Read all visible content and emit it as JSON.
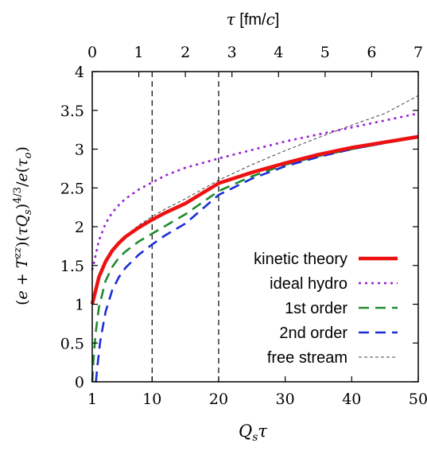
{
  "chart_data": {
    "type": "line",
    "xlabel": "Q_s τ",
    "ylabel": "(e + T^zz)(τQ_s)^4/3 / e(τ_o)",
    "top_xlabel": "τ [fm/c]",
    "xlim": [
      0,
      50
    ],
    "ylim": [
      0,
      4
    ],
    "x_ticks": [
      "1",
      "10",
      "20",
      "30",
      "40",
      "50"
    ],
    "x_tick_values": [
      1,
      10,
      20,
      30,
      40,
      50
    ],
    "y_ticks": [
      "0",
      "0.5",
      "1",
      "1.5",
      "2",
      "2.5",
      "3",
      "3.5",
      "4"
    ],
    "y_tick_values": [
      0,
      0.5,
      1,
      1.5,
      2,
      2.5,
      3,
      3.5,
      4
    ],
    "top_ticks": [
      "0",
      "1",
      "2",
      "3",
      "4",
      "5",
      "6",
      "7"
    ],
    "top_tick_values": [
      0,
      1,
      2,
      3,
      4,
      5,
      6,
      7
    ],
    "vlines": [
      10,
      20
    ],
    "legend_position": "bottom-right",
    "series": [
      {
        "name": "kinetic theory",
        "color": "#ee1111",
        "style": "solid",
        "x": [
          1,
          2,
          3,
          4,
          5,
          6,
          8,
          10,
          12,
          15,
          20,
          25,
          30,
          35,
          40,
          45,
          50
        ],
        "y": [
          1.0,
          1.35,
          1.55,
          1.69,
          1.79,
          1.87,
          1.99,
          2.09,
          2.18,
          2.3,
          2.56,
          2.7,
          2.82,
          2.93,
          3.02,
          3.09,
          3.16
        ]
      },
      {
        "name": "ideal hydro",
        "color": "#9a1fd6",
        "style": "dotted",
        "x": [
          1,
          2,
          3,
          4,
          5,
          6,
          8,
          10,
          12,
          15,
          20,
          25,
          30,
          35,
          40,
          45,
          50
        ],
        "y": [
          1.44,
          1.82,
          2.04,
          2.18,
          2.28,
          2.36,
          2.48,
          2.57,
          2.66,
          2.76,
          2.88,
          2.99,
          3.1,
          3.19,
          3.28,
          3.37,
          3.46
        ]
      },
      {
        "name": "1st order",
        "color": "#1f8a2e",
        "style": "dashed",
        "x": [
          1.0,
          1.2,
          1.5,
          2,
          3,
          4,
          5,
          6,
          8,
          10,
          12,
          15,
          20,
          25,
          30,
          35,
          40,
          45,
          50
        ],
        "y": [
          0.0,
          0.3,
          0.62,
          0.96,
          1.3,
          1.48,
          1.6,
          1.68,
          1.81,
          1.91,
          2.01,
          2.16,
          2.46,
          2.65,
          2.8,
          2.91,
          3.0,
          3.08,
          3.15
        ]
      },
      {
        "name": "2nd order",
        "color": "#1a2ed6",
        "style": "dashed",
        "x": [
          1.55,
          1.8,
          2.2,
          3,
          4,
          5,
          6,
          8,
          10,
          12,
          15,
          20,
          25,
          30,
          35,
          40,
          45,
          50
        ],
        "y": [
          0.0,
          0.22,
          0.52,
          0.9,
          1.18,
          1.35,
          1.47,
          1.64,
          1.77,
          1.89,
          2.04,
          2.41,
          2.62,
          2.78,
          2.9,
          3.0,
          3.08,
          3.15
        ]
      },
      {
        "name": "free stream",
        "color": "#444444",
        "style": "thin-dashed",
        "x": [
          1,
          2,
          3,
          4,
          5,
          6,
          8,
          10,
          12,
          15,
          20,
          25,
          30,
          35,
          40,
          45,
          50
        ],
        "y": [
          1.0,
          1.33,
          1.53,
          1.68,
          1.79,
          1.88,
          2.02,
          2.13,
          2.23,
          2.36,
          2.6,
          2.8,
          2.98,
          3.15,
          3.31,
          3.46,
          3.69
        ]
      }
    ]
  }
}
